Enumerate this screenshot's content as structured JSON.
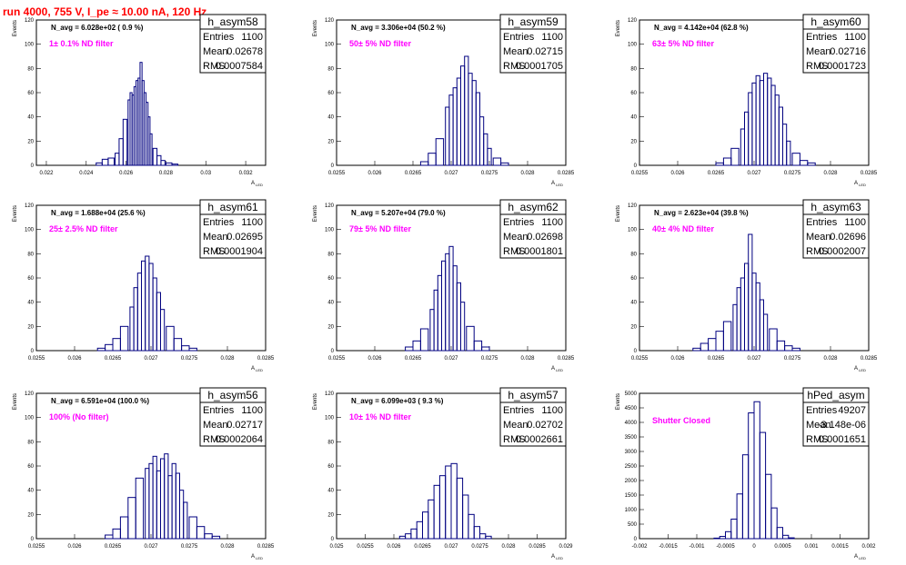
{
  "run_title": "run 4000,   755 V, I_pe ≈ 10.00 nA, 120 Hz",
  "colors": {
    "hist": "#000080",
    "title": "#ff0000",
    "annotation": "#ff00ff"
  },
  "stats_labels": {
    "entries": "Entries",
    "mean": "Mean",
    "rms": "RMS"
  },
  "chart_data": [
    {
      "type": "bar",
      "name": "h_asym58",
      "title": "",
      "ylabel": "Events",
      "xlabel": "A_LED",
      "navg": "N_avg = 6.028e+02 ( 0.9 %)",
      "annotation": "1± 0.1% ND filter",
      "stats": {
        "entries": "1100",
        "mean": "0.02678",
        "rms": "0.0007584"
      },
      "xlim": [
        0.0215,
        0.033
      ],
      "ylim": [
        0,
        120
      ],
      "xticks": [
        "0.022",
        "0.024",
        "0.026",
        "0.028",
        "0.03",
        "0.032"
      ],
      "xtick_values": [
        0.022,
        0.024,
        0.026,
        0.028,
        0.03,
        0.032
      ],
      "yticks": [
        "0",
        "20",
        "40",
        "60",
        "80",
        "100",
        "120"
      ],
      "bin_centers": [
        0.02465,
        0.02495,
        0.02525,
        0.02555,
        0.02575,
        0.02595,
        0.02615,
        0.02625,
        0.02635,
        0.02645,
        0.02655,
        0.02665,
        0.02675,
        0.02685,
        0.02695,
        0.02705,
        0.02715,
        0.02725,
        0.02745,
        0.02765,
        0.02785,
        0.02815,
        0.02845
      ],
      "values": [
        2,
        5,
        6,
        10,
        22,
        38,
        54,
        60,
        58,
        65,
        70,
        72,
        85,
        70,
        60,
        52,
        40,
        26,
        14,
        8,
        4,
        2,
        1
      ]
    },
    {
      "type": "bar",
      "name": "h_asym59",
      "title": "",
      "ylabel": "Events",
      "xlabel": "A_LED",
      "navg": "N_avg = 3.306e+04 (50.2 %)",
      "annotation": "50± 5% ND filter",
      "stats": {
        "entries": "1100",
        "mean": "0.02715",
        "rms": "0.0001705"
      },
      "xlim": [
        0.0255,
        0.0285
      ],
      "ylim": [
        0,
        120
      ],
      "xticks": [
        "0.0255",
        "0.026",
        "0.0265",
        "0.027",
        "0.0275",
        "0.028",
        "0.0285"
      ],
      "xtick_values": [
        0.0255,
        0.026,
        0.0265,
        0.027,
        0.0275,
        0.028,
        0.0285
      ],
      "yticks": [
        "0",
        "20",
        "40",
        "60",
        "80",
        "100",
        "120"
      ],
      "bin_centers": [
        0.02665,
        0.02675,
        0.02685,
        0.02695,
        0.027,
        0.02705,
        0.0271,
        0.02715,
        0.0272,
        0.02725,
        0.0273,
        0.02735,
        0.0274,
        0.02745,
        0.0275,
        0.0276,
        0.0277
      ],
      "values": [
        3,
        10,
        22,
        48,
        58,
        64,
        72,
        82,
        90,
        76,
        70,
        60,
        40,
        26,
        14,
        6,
        2
      ]
    },
    {
      "type": "bar",
      "name": "h_asym60",
      "title": "",
      "ylabel": "Events",
      "xlabel": "A_LED",
      "navg": "N_avg = 4.142e+04 (62.8 %)",
      "annotation": "63± 5% ND filter",
      "stats": {
        "entries": "1100",
        "mean": "0.02716",
        "rms": "0.0001723"
      },
      "xlim": [
        0.0255,
        0.0285
      ],
      "ylim": [
        0,
        120
      ],
      "xticks": [
        "0.0255",
        "0.026",
        "0.0265",
        "0.027",
        "0.0275",
        "0.028",
        "0.0285"
      ],
      "xtick_values": [
        0.0255,
        0.026,
        0.0265,
        0.027,
        0.0275,
        0.028,
        0.0285
      ],
      "yticks": [
        "0",
        "20",
        "40",
        "60",
        "80",
        "100",
        "120"
      ],
      "bin_centers": [
        0.02655,
        0.02665,
        0.02675,
        0.02685,
        0.0269,
        0.02695,
        0.027,
        0.02705,
        0.0271,
        0.02715,
        0.0272,
        0.02725,
        0.0273,
        0.02735,
        0.0274,
        0.02745,
        0.02755,
        0.02765,
        0.02775
      ],
      "values": [
        2,
        6,
        14,
        30,
        44,
        60,
        68,
        74,
        70,
        76,
        72,
        66,
        58,
        48,
        34,
        20,
        10,
        4,
        2
      ]
    },
    {
      "type": "bar",
      "name": "h_asym61",
      "title": "",
      "ylabel": "Events",
      "xlabel": "A_LED",
      "navg": "N_avg = 1.688e+04 (25.6 %)",
      "annotation": "25± 2.5% ND filter",
      "stats": {
        "entries": "1100",
        "mean": "0.02695",
        "rms": "0.0001904"
      },
      "xlim": [
        0.0255,
        0.0285
      ],
      "ylim": [
        0,
        120
      ],
      "xticks": [
        "0.0255",
        "0.026",
        "0.0265",
        "0.027",
        "0.0275",
        "0.028",
        "0.0285"
      ],
      "xtick_values": [
        0.0255,
        0.026,
        0.0265,
        0.027,
        0.0275,
        0.028,
        0.0285
      ],
      "yticks": [
        "0",
        "20",
        "40",
        "60",
        "80",
        "100",
        "120"
      ],
      "bin_centers": [
        0.02635,
        0.02645,
        0.02655,
        0.02665,
        0.02675,
        0.0268,
        0.02685,
        0.0269,
        0.02695,
        0.027,
        0.02705,
        0.0271,
        0.02715,
        0.02725,
        0.02735,
        0.02745,
        0.02755
      ],
      "values": [
        2,
        5,
        10,
        20,
        36,
        52,
        64,
        74,
        78,
        72,
        60,
        48,
        34,
        20,
        10,
        4,
        2
      ]
    },
    {
      "type": "bar",
      "name": "h_asym62",
      "title": "",
      "ylabel": "Events",
      "xlabel": "A_LED",
      "navg": "N_avg = 5.207e+04 (79.0 %)",
      "annotation": "79± 5% ND filter",
      "stats": {
        "entries": "1100",
        "mean": "0.02698",
        "rms": "0.0001801"
      },
      "xlim": [
        0.0255,
        0.0285
      ],
      "ylim": [
        0,
        120
      ],
      "xticks": [
        "0.0255",
        "0.026",
        "0.0265",
        "0.027",
        "0.0275",
        "0.028",
        "0.0285"
      ],
      "xtick_values": [
        0.0255,
        0.026,
        0.0265,
        0.027,
        0.0275,
        0.028,
        0.0285
      ],
      "yticks": [
        "0",
        "20",
        "40",
        "60",
        "80",
        "100",
        "120"
      ],
      "bin_centers": [
        0.02645,
        0.02655,
        0.02665,
        0.02675,
        0.0268,
        0.02685,
        0.0269,
        0.02695,
        0.027,
        0.02705,
        0.0271,
        0.02715,
        0.02725,
        0.02735,
        0.02745
      ],
      "values": [
        3,
        8,
        18,
        34,
        50,
        62,
        74,
        80,
        86,
        70,
        56,
        40,
        20,
        8,
        3
      ]
    },
    {
      "type": "bar",
      "name": "h_asym63",
      "title": "",
      "ylabel": "Events",
      "xlabel": "A_LED",
      "navg": "N_avg = 2.623e+04 (39.8 %)",
      "annotation": "40± 4% ND filter",
      "stats": {
        "entries": "1100",
        "mean": "0.02696",
        "rms": "0.0002007"
      },
      "xlim": [
        0.0255,
        0.0285
      ],
      "ylim": [
        0,
        120
      ],
      "xticks": [
        "0.0255",
        "0.026",
        "0.0265",
        "0.027",
        "0.0275",
        "0.028",
        "0.0285"
      ],
      "xtick_values": [
        0.0255,
        0.026,
        0.0265,
        0.027,
        0.0275,
        0.028,
        0.0285
      ],
      "yticks": [
        "0",
        "20",
        "40",
        "60",
        "80",
        "100",
        "120"
      ],
      "bin_centers": [
        0.02625,
        0.02635,
        0.02645,
        0.02655,
        0.02665,
        0.02675,
        0.0268,
        0.02685,
        0.0269,
        0.02695,
        0.027,
        0.02705,
        0.0271,
        0.02715,
        0.02725,
        0.02735,
        0.02745,
        0.02755
      ],
      "values": [
        2,
        6,
        10,
        16,
        24,
        38,
        52,
        60,
        72,
        96,
        64,
        56,
        42,
        30,
        18,
        8,
        4,
        2
      ]
    },
    {
      "type": "bar",
      "name": "h_asym56",
      "title": "",
      "ylabel": "Events",
      "xlabel": "A_LED",
      "navg": "N_avg = 6.591e+04 (100.0 %)",
      "annotation": "100% (No filter)",
      "stats": {
        "entries": "1100",
        "mean": "0.02717",
        "rms": "0.0002064"
      },
      "xlim": [
        0.0255,
        0.0285
      ],
      "ylim": [
        0,
        120
      ],
      "xticks": [
        "0.0255",
        "0.026",
        "0.0265",
        "0.027",
        "0.0275",
        "0.028",
        "0.0285"
      ],
      "xtick_values": [
        0.0255,
        0.026,
        0.0265,
        0.027,
        0.0275,
        0.028,
        0.0285
      ],
      "yticks": [
        "0",
        "20",
        "40",
        "60",
        "80",
        "100",
        "120"
      ],
      "bin_centers": [
        0.02645,
        0.02655,
        0.02665,
        0.02675,
        0.02685,
        0.02695,
        0.027,
        0.02705,
        0.0271,
        0.02715,
        0.0272,
        0.02725,
        0.0273,
        0.02735,
        0.0274,
        0.02745,
        0.02755,
        0.02765,
        0.02775,
        0.02785
      ],
      "values": [
        3,
        8,
        18,
        34,
        50,
        58,
        62,
        68,
        56,
        66,
        70,
        52,
        62,
        54,
        40,
        30,
        18,
        10,
        4,
        2
      ]
    },
    {
      "type": "bar",
      "name": "h_asym57",
      "title": "",
      "ylabel": "Events",
      "xlabel": "A_LED",
      "navg": "N_avg = 6.099e+03 ( 9.3 %)",
      "annotation": "10± 1% ND filter",
      "stats": {
        "entries": "1100",
        "mean": "0.02702",
        "rms": "0.0002661"
      },
      "xlim": [
        0.025,
        0.029
      ],
      "ylim": [
        0,
        120
      ],
      "xticks": [
        "0.025",
        "0.0255",
        "0.026",
        "0.0265",
        "0.027",
        "0.0275",
        "0.028",
        "0.0285",
        "0.029"
      ],
      "xtick_values": [
        0.025,
        0.0255,
        0.026,
        0.0265,
        0.027,
        0.0275,
        0.028,
        0.0285,
        0.029
      ],
      "yticks": [
        "0",
        "20",
        "40",
        "60",
        "80",
        "100",
        "120"
      ],
      "bin_centers": [
        0.02615,
        0.02625,
        0.02635,
        0.02645,
        0.02655,
        0.02665,
        0.02675,
        0.02685,
        0.02695,
        0.02705,
        0.02715,
        0.02725,
        0.02735,
        0.02745,
        0.02755,
        0.02765
      ],
      "values": [
        2,
        4,
        8,
        14,
        22,
        32,
        44,
        52,
        60,
        62,
        50,
        36,
        20,
        10,
        4,
        2
      ]
    },
    {
      "type": "bar",
      "name": "hPed_asym",
      "title": "",
      "ylabel": "Events",
      "xlabel": "A_LED",
      "navg": "",
      "annotation": "Shutter Closed",
      "stats": {
        "entries": "49207",
        "mean": "-3.148e-06",
        "rms": "0.0001651"
      },
      "xlim": [
        -0.002,
        0.002
      ],
      "ylim": [
        0,
        5200
      ],
      "xticks": [
        "-0.002",
        "-0.0015",
        "-0.001",
        "-0.0005",
        "0",
        "0.0005",
        "0.001",
        "0.0015",
        "0.002"
      ],
      "xtick_values": [
        -0.002,
        -0.0015,
        -0.001,
        -0.0005,
        0,
        0.0005,
        0.001,
        0.0015,
        0.002
      ],
      "yticks": [
        "0",
        "500",
        "1000",
        "1500",
        "2000",
        "2500",
        "3000",
        "3500",
        "4000",
        "4500",
        "5000"
      ],
      "bin_centers": [
        -0.00065,
        -0.00055,
        -0.00045,
        -0.00035,
        -0.00025,
        -0.00015,
        -5e-05,
        5e-05,
        0.00015,
        0.00025,
        0.00035,
        0.00045,
        0.00055,
        0.00065
      ],
      "values": [
        20,
        80,
        250,
        700,
        1600,
        3000,
        4500,
        4900,
        3800,
        2300,
        1100,
        400,
        120,
        30
      ]
    }
  ]
}
